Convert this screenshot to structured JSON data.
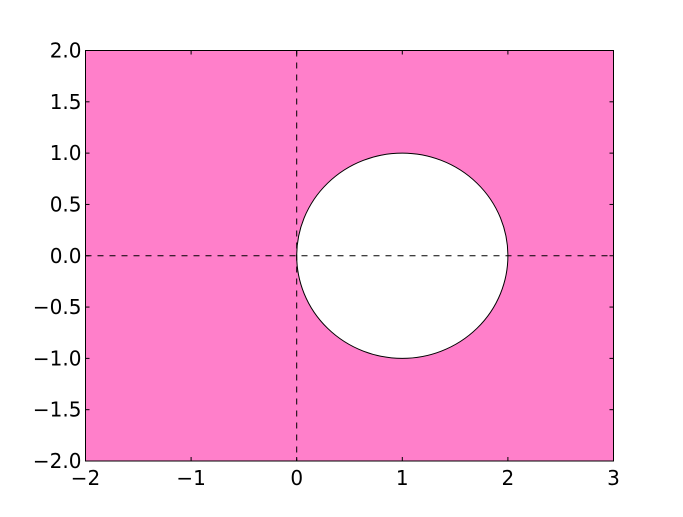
{
  "chart_data": {
    "type": "area",
    "title": "",
    "xlabel": "",
    "ylabel": "",
    "xlim": [
      -2,
      3
    ],
    "ylim": [
      -2,
      2
    ],
    "x_ticks": [
      -2,
      -1,
      0,
      1,
      2,
      3
    ],
    "x_tick_labels": [
      "−2",
      "−1",
      "0",
      "1",
      "2",
      "3"
    ],
    "y_ticks": [
      -2.0,
      -1.5,
      -1.0,
      -0.5,
      0.0,
      0.5,
      1.0,
      1.5,
      2.0
    ],
    "y_tick_labels": [
      "−2.0",
      "−1.5",
      "−1.0",
      "−0.5",
      "0.0",
      "0.5",
      "1.0",
      "1.5",
      "2.0"
    ],
    "grid": false,
    "filled_region": {
      "description_of_shape": "region outside circle",
      "circle_center": [
        1,
        0
      ],
      "circle_radius": 1,
      "fill_color": "#ff7fca",
      "circle_fill": "#ffffff",
      "edge_color": "#000000"
    },
    "reference_lines": [
      {
        "orientation": "horizontal",
        "y": 0,
        "style": "dashed",
        "color": "#000000"
      },
      {
        "orientation": "vertical",
        "x": 0,
        "style": "dashed",
        "color": "#000000"
      }
    ]
  }
}
